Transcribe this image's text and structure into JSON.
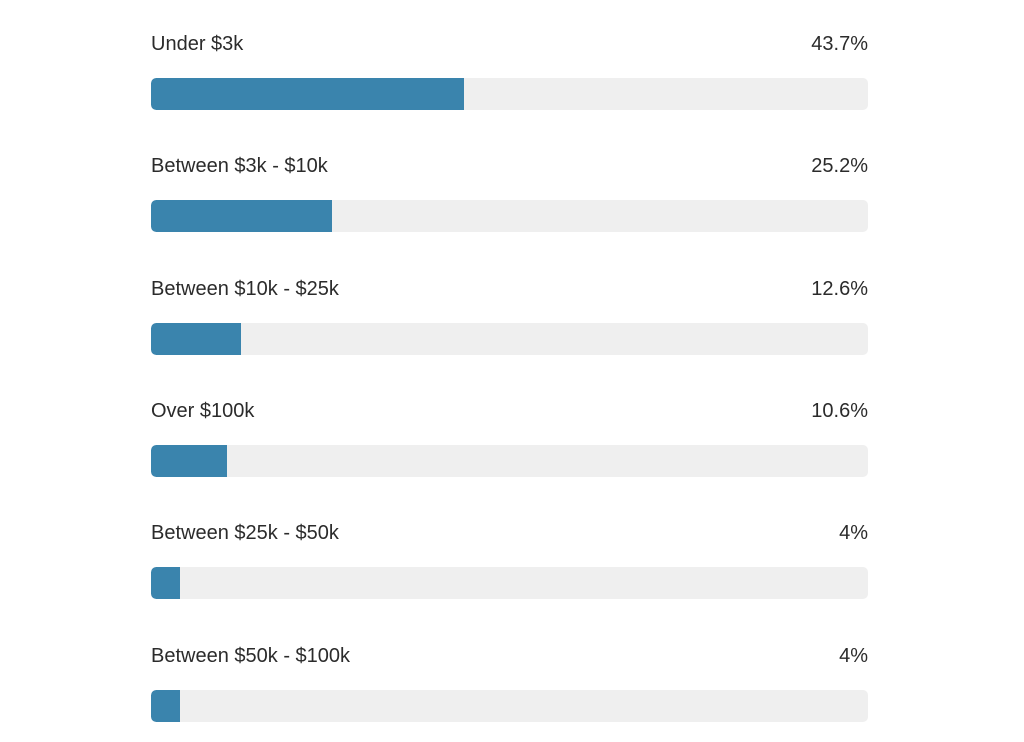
{
  "colors": {
    "bar_fill": "#3a84ad",
    "track": "#efefef",
    "text": "#2b2b2b"
  },
  "chart_data": {
    "type": "bar",
    "orientation": "horizontal",
    "categories": [
      "Under $3k",
      "Between $3k - $10k",
      "Between $10k - $25k",
      "Over $100k",
      "Between $25k - $50k",
      "Between $50k - $100k"
    ],
    "values": [
      43.7,
      25.2,
      12.6,
      10.6,
      4,
      4
    ],
    "value_labels": [
      "43.7%",
      "25.2%",
      "12.6%",
      "10.6%",
      "4%",
      "4%"
    ],
    "xlim": [
      0,
      100
    ],
    "unit": "%",
    "grid": false
  }
}
